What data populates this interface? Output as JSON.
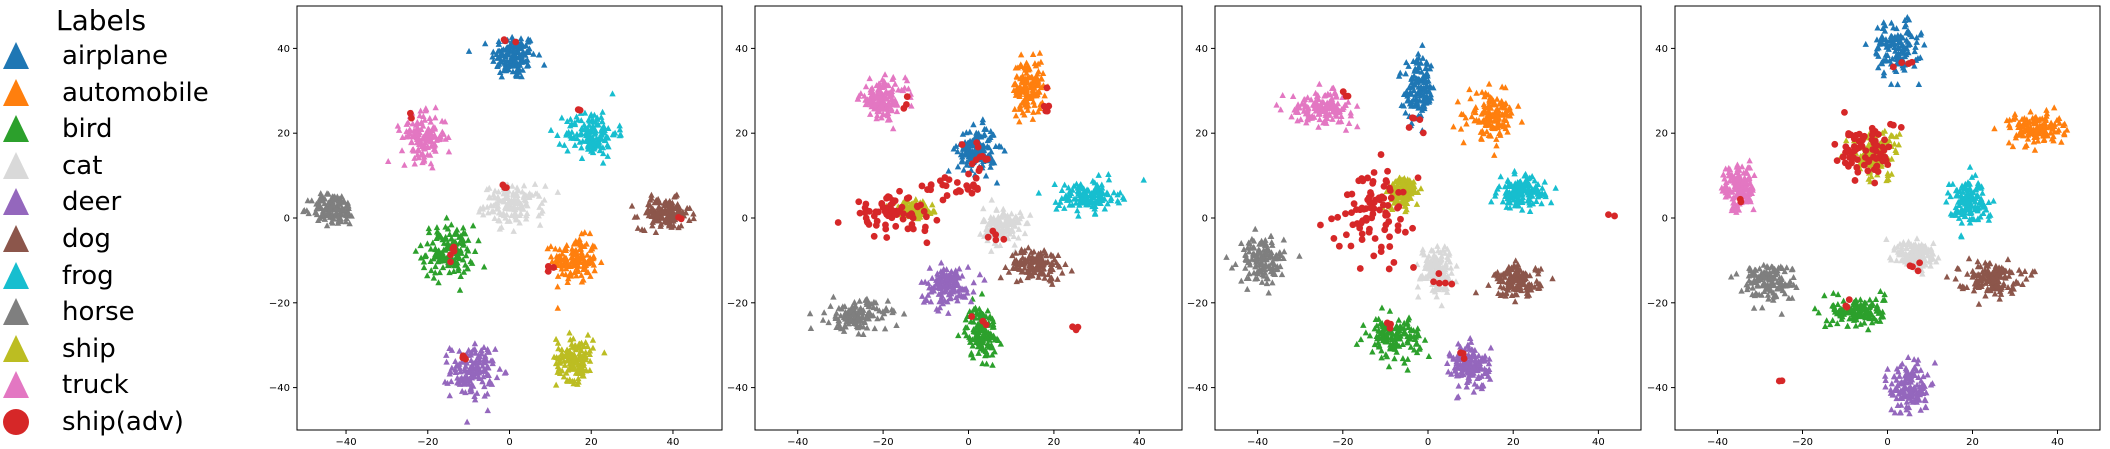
{
  "legend": {
    "title": "Labels",
    "entries": [
      {
        "label": "airplane",
        "color": "#1f77b4",
        "marker": "triangle"
      },
      {
        "label": "automobile",
        "color": "#ff7f0e",
        "marker": "triangle"
      },
      {
        "label": "bird",
        "color": "#2ca02c",
        "marker": "triangle"
      },
      {
        "label": "cat",
        "color": "#d9d9d9",
        "marker": "triangle"
      },
      {
        "label": "deer",
        "color": "#9467bd",
        "marker": "triangle"
      },
      {
        "label": "dog",
        "color": "#8c564b",
        "marker": "triangle"
      },
      {
        "label": "frog",
        "color": "#17becf",
        "marker": "triangle"
      },
      {
        "label": "horse",
        "color": "#7f7f7f",
        "marker": "triangle"
      },
      {
        "label": "ship",
        "color": "#bcbd22",
        "marker": "triangle"
      },
      {
        "label": "truck",
        "color": "#e377c2",
        "marker": "triangle"
      },
      {
        "label": "ship(adv)",
        "color": "#d62728",
        "marker": "circle"
      }
    ]
  },
  "chart_data": [
    {
      "type": "scatter",
      "xlim": [
        -52,
        52
      ],
      "ylim": [
        -50,
        50
      ],
      "xticks": [
        -40,
        -20,
        0,
        20,
        40
      ],
      "yticks": [
        -40,
        -20,
        0,
        20,
        40
      ],
      "clusters": [
        {
          "label": "airplane",
          "cx": 1,
          "cy": 38,
          "rx": 6,
          "ry": 6
        },
        {
          "label": "automobile",
          "cx": 16,
          "cy": -10,
          "rx": 6,
          "ry": 6
        },
        {
          "label": "bird",
          "cx": -15,
          "cy": -8,
          "rx": 7,
          "ry": 7
        },
        {
          "label": "cat",
          "cx": 1,
          "cy": 3,
          "rx": 8,
          "ry": 5
        },
        {
          "label": "deer",
          "cx": -9,
          "cy": -36,
          "rx": 6,
          "ry": 7
        },
        {
          "label": "dog",
          "cx": 38,
          "cy": 1,
          "rx": 7,
          "ry": 4
        },
        {
          "label": "frog",
          "cx": 20,
          "cy": 20,
          "rx": 7,
          "ry": 6
        },
        {
          "label": "horse",
          "cx": -43,
          "cy": 2,
          "rx": 6,
          "ry": 4
        },
        {
          "label": "ship",
          "cx": 16,
          "cy": -33,
          "rx": 5,
          "ry": 6
        },
        {
          "label": "truck",
          "cx": -21,
          "cy": 19,
          "rx": 6,
          "ry": 6
        }
      ],
      "adv_groups": [
        {
          "cx": 0,
          "cy": 42,
          "rx": 2,
          "ry": 2,
          "n": 3
        },
        {
          "cx": -14,
          "cy": -8,
          "rx": 2,
          "ry": 2,
          "n": 5
        },
        {
          "cx": -1,
          "cy": 7,
          "rx": 1,
          "ry": 1,
          "n": 3
        },
        {
          "cx": -12,
          "cy": -33,
          "rx": 2,
          "ry": 2,
          "n": 4
        },
        {
          "cx": 17,
          "cy": 25,
          "rx": 1,
          "ry": 2,
          "n": 3
        },
        {
          "cx": 9,
          "cy": -12,
          "rx": 2,
          "ry": 1,
          "n": 3
        },
        {
          "cx": -24,
          "cy": 24,
          "rx": 1,
          "ry": 1,
          "n": 2
        },
        {
          "cx": 42,
          "cy": 0,
          "rx": 1,
          "ry": 1,
          "n": 2
        }
      ]
    },
    {
      "type": "scatter",
      "xlim": [
        -50,
        50
      ],
      "ylim": [
        -50,
        50
      ],
      "xticks": [
        -40,
        -20,
        0,
        20,
        40
      ],
      "yticks": [
        -40,
        -20,
        0,
        20,
        40
      ],
      "clusters": [
        {
          "label": "airplane",
          "cx": 2,
          "cy": 16,
          "rx": 5,
          "ry": 6
        },
        {
          "label": "automobile",
          "cx": 14,
          "cy": 31,
          "rx": 4,
          "ry": 7
        },
        {
          "label": "bird",
          "cx": 3,
          "cy": -27,
          "rx": 4,
          "ry": 7
        },
        {
          "label": "cat",
          "cx": 8,
          "cy": -2,
          "rx": 5,
          "ry": 5
        },
        {
          "label": "deer",
          "cx": -5,
          "cy": -16,
          "rx": 7,
          "ry": 5
        },
        {
          "label": "dog",
          "cx": 16,
          "cy": -11,
          "rx": 7,
          "ry": 4
        },
        {
          "label": "frog",
          "cx": 28,
          "cy": 5,
          "rx": 8,
          "ry": 4
        },
        {
          "label": "horse",
          "cx": -26,
          "cy": -23,
          "rx": 8,
          "ry": 4
        },
        {
          "label": "ship",
          "cx": -13,
          "cy": 2,
          "rx": 5,
          "ry": 2
        },
        {
          "label": "truck",
          "cx": -20,
          "cy": 28,
          "rx": 6,
          "ry": 5
        }
      ],
      "adv_groups": [
        {
          "cx": -18,
          "cy": 1,
          "rx": 10,
          "ry": 4,
          "n": 70
        },
        {
          "cx": -4,
          "cy": 7,
          "rx": 8,
          "ry": 3,
          "n": 25
        },
        {
          "cx": 3,
          "cy": 14,
          "rx": 3,
          "ry": 4,
          "n": 12
        },
        {
          "cx": 18,
          "cy": 27,
          "rx": 1,
          "ry": 3,
          "n": 5
        },
        {
          "cx": 25,
          "cy": -26,
          "rx": 1,
          "ry": 1,
          "n": 3
        },
        {
          "cx": -15,
          "cy": 27,
          "rx": 1,
          "ry": 2,
          "n": 3
        },
        {
          "cx": 3,
          "cy": -24,
          "rx": 2,
          "ry": 2,
          "n": 3
        },
        {
          "cx": 6,
          "cy": -5,
          "rx": 3,
          "ry": 2,
          "n": 5
        }
      ]
    },
    {
      "type": "scatter",
      "xlim": [
        -50,
        50
      ],
      "ylim": [
        -50,
        50
      ],
      "xticks": [
        -40,
        -20,
        0,
        20,
        40
      ],
      "yticks": [
        -40,
        -20,
        0,
        20,
        40
      ],
      "clusters": [
        {
          "label": "airplane",
          "cx": -2,
          "cy": 30,
          "rx": 4,
          "ry": 8
        },
        {
          "label": "automobile",
          "cx": 15,
          "cy": 24,
          "rx": 6,
          "ry": 6
        },
        {
          "label": "bird",
          "cx": -8,
          "cy": -28,
          "rx": 7,
          "ry": 5
        },
        {
          "label": "cat",
          "cx": 2,
          "cy": -12,
          "rx": 4,
          "ry": 6
        },
        {
          "label": "deer",
          "cx": 10,
          "cy": -35,
          "rx": 5,
          "ry": 6
        },
        {
          "label": "dog",
          "cx": 21,
          "cy": -15,
          "rx": 6,
          "ry": 4
        },
        {
          "label": "frog",
          "cx": 22,
          "cy": 6,
          "rx": 6,
          "ry": 4
        },
        {
          "label": "horse",
          "cx": -39,
          "cy": -10,
          "rx": 6,
          "ry": 6
        },
        {
          "label": "ship",
          "cx": -6,
          "cy": 6,
          "rx": 4,
          "ry": 4
        },
        {
          "label": "truck",
          "cx": -25,
          "cy": 26,
          "rx": 8,
          "ry": 4
        }
      ],
      "adv_groups": [
        {
          "cx": -12,
          "cy": 2,
          "rx": 9,
          "ry": 10,
          "n": 90
        },
        {
          "cx": -3,
          "cy": 23,
          "rx": 2,
          "ry": 3,
          "n": 5
        },
        {
          "cx": 3,
          "cy": -14,
          "rx": 3,
          "ry": 3,
          "n": 5
        },
        {
          "cx": -20,
          "cy": 29,
          "rx": 2,
          "ry": 1,
          "n": 3
        },
        {
          "cx": 43,
          "cy": 1,
          "rx": 1,
          "ry": 1,
          "n": 2
        },
        {
          "cx": 8,
          "cy": -32,
          "rx": 2,
          "ry": 2,
          "n": 3
        },
        {
          "cx": -8,
          "cy": -25,
          "rx": 2,
          "ry": 2,
          "n": 3
        }
      ]
    },
    {
      "type": "scatter",
      "xlim": [
        -50,
        50
      ],
      "ylim": [
        -50,
        50
      ],
      "xticks": [
        -40,
        -20,
        0,
        20,
        40
      ],
      "yticks": [
        -40,
        -20,
        0,
        20,
        40
      ],
      "clusters": [
        {
          "label": "airplane",
          "cx": 2,
          "cy": 40,
          "rx": 6,
          "ry": 7
        },
        {
          "label": "automobile",
          "cx": 35,
          "cy": 21,
          "rx": 7,
          "ry": 4
        },
        {
          "label": "bird",
          "cx": -7,
          "cy": -22,
          "rx": 7,
          "ry": 4
        },
        {
          "label": "cat",
          "cx": 7,
          "cy": -9,
          "rx": 5,
          "ry": 4
        },
        {
          "label": "deer",
          "cx": 5,
          "cy": -40,
          "rx": 5,
          "ry": 7
        },
        {
          "label": "dog",
          "cx": 24,
          "cy": -14,
          "rx": 8,
          "ry": 4
        },
        {
          "label": "frog",
          "cx": 19,
          "cy": 4,
          "rx": 5,
          "ry": 6
        },
        {
          "label": "horse",
          "cx": -28,
          "cy": -15,
          "rx": 7,
          "ry": 5
        },
        {
          "label": "ship",
          "cx": -3,
          "cy": 15,
          "rx": 6,
          "ry": 6
        },
        {
          "label": "truck",
          "cx": -35,
          "cy": 7,
          "rx": 4,
          "ry": 6
        }
      ],
      "adv_groups": [
        {
          "cx": -5,
          "cy": 16,
          "rx": 7,
          "ry": 7,
          "n": 70
        },
        {
          "cx": 4,
          "cy": 36,
          "rx": 3,
          "ry": 1,
          "n": 4
        },
        {
          "cx": -35,
          "cy": 4,
          "rx": 1,
          "ry": 1,
          "n": 2
        },
        {
          "cx": -25,
          "cy": -38,
          "rx": 1,
          "ry": 1,
          "n": 2
        },
        {
          "cx": 7,
          "cy": -12,
          "rx": 3,
          "ry": 2,
          "n": 4
        },
        {
          "cx": -8,
          "cy": -20,
          "rx": 2,
          "ry": 2,
          "n": 3
        }
      ]
    }
  ]
}
